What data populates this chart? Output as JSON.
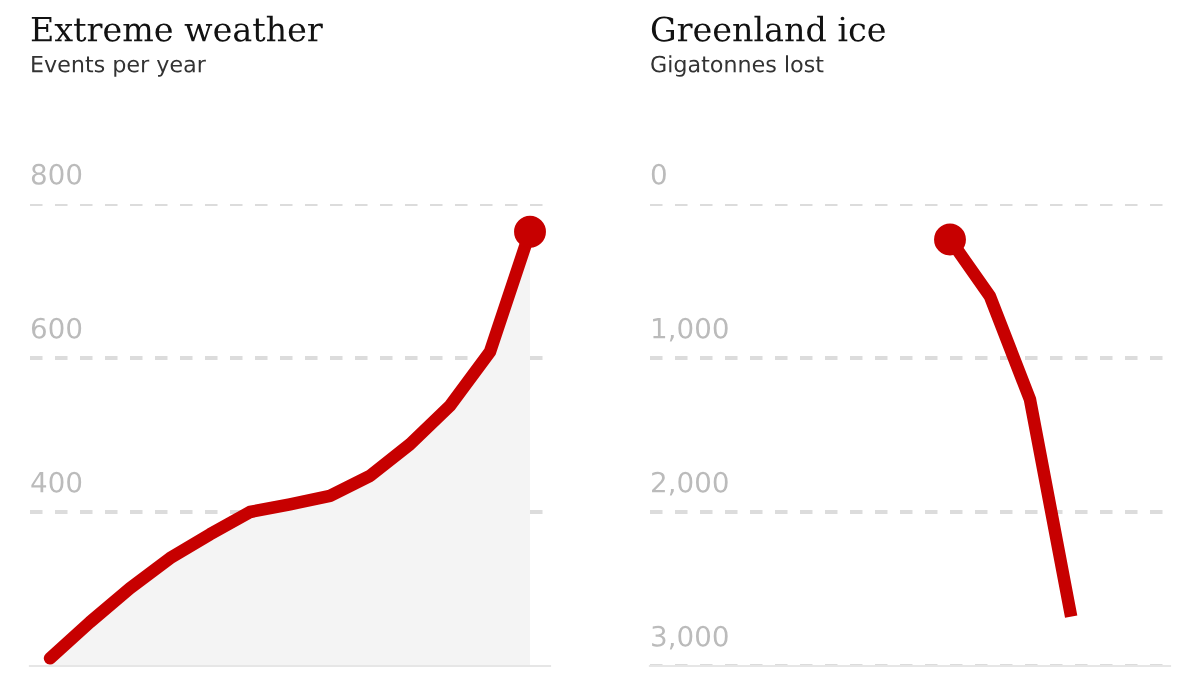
{
  "chart_data": [
    {
      "type": "area",
      "title": "Extreme weather",
      "subtitle": "Events per year",
      "categories": [
        null,
        null,
        null,
        null,
        null,
        null,
        null,
        null,
        null,
        null,
        null,
        null,
        null
      ],
      "series": [
        {
          "color": "#c70000",
          "values": [
            210,
            257,
            301,
            340,
            371,
            400,
            410,
            421,
            447,
            488,
            538,
            608,
            764
          ]
        },
        {
          "type": "scatter",
          "color": "#c70000",
          "marker": "circle",
          "values": [
            null,
            null,
            null,
            null,
            null,
            null,
            null,
            null,
            null,
            null,
            null,
            null,
            764
          ]
        }
      ],
      "ylim": [
        200,
        800
      ],
      "yticks": [
        400,
        600,
        800
      ],
      "grid": "y",
      "tick_labels": "y"
    },
    {
      "type": "area",
      "title": "Greenland ice",
      "subtitle": "Gigatonnes lost",
      "categories": [
        null,
        null,
        null,
        null,
        null,
        null,
        null,
        null,
        null,
        null,
        null,
        null,
        null
      ],
      "series": [
        {
          "type": "line",
          "color": "#c70000",
          "values": [
            null,
            null,
            null,
            null,
            null,
            null,
            null,
            230,
            600,
            1270,
            2640,
            null,
            null
          ]
        },
        {
          "type": "scatter",
          "color": "#c70000",
          "marker": "circle",
          "values": [
            null,
            null,
            null,
            null,
            null,
            null,
            null,
            230,
            null,
            null,
            null,
            null,
            null
          ]
        }
      ],
      "ylim": [
        3000,
        0
      ],
      "yticks": [
        0,
        {
          "value": 1000,
          "label": "1,000"
        },
        {
          "value": 2000,
          "label": "2,000"
        },
        {
          "value": 3000,
          "label": "3,000"
        }
      ],
      "grid": "y",
      "tick_labels": "y"
    }
  ]
}
